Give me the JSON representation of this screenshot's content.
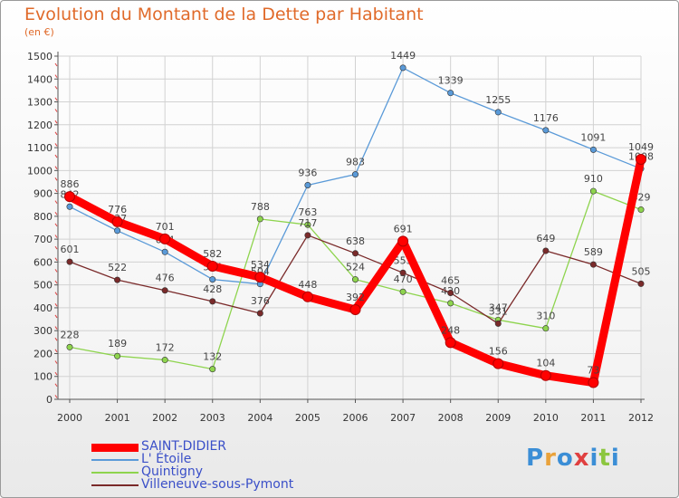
{
  "header": {
    "title": "Evolution du Montant de la Dette par Habitant",
    "unit": "(en €)"
  },
  "logo": {
    "text": "Proxiti",
    "colors": [
      "#3b8ed6",
      "#e9a23b",
      "#3b8ed6",
      "#e04040",
      "#3b8ed6",
      "#8cc63f",
      "#3b8ed6"
    ]
  },
  "chart_data": {
    "type": "line",
    "title": "Evolution du Montant de la Dette par Habitant",
    "ylabel": "(en €)",
    "x": [
      "2000",
      "2001",
      "2002",
      "2003",
      "2004",
      "2005",
      "2006",
      "2007",
      "2008",
      "2009",
      "2010",
      "2011",
      "2012"
    ],
    "ylim": [
      0,
      1500
    ],
    "yticks": [
      0,
      100,
      200,
      300,
      400,
      500,
      600,
      700,
      800,
      900,
      1000,
      1100,
      1200,
      1300,
      1400,
      1500
    ],
    "grid": true,
    "legend_position": "bottom-left",
    "series": [
      {
        "name": "SAINT-DIDIER",
        "color": "#ff0000",
        "emphasis": true,
        "values": [
          886,
          776,
          701,
          582,
          534,
          448,
          392,
          691,
          248,
          156,
          104,
          73,
          1049
        ]
      },
      {
        "name": "L' Étoile",
        "color": "#5a9ad8",
        "values": [
          842,
          737,
          644,
          524,
          504,
          936,
          983,
          1449,
          1339,
          1255,
          1176,
          1091,
          1008
        ]
      },
      {
        "name": "Quintigny",
        "color": "#8ed44e",
        "values": [
          228,
          189,
          172,
          132,
          788,
          763,
          524,
          470,
          420,
          347,
          310,
          910,
          829
        ]
      },
      {
        "name": "Villeneuve-sous-Pymont",
        "color": "#7a2a2a",
        "values": [
          601,
          522,
          476,
          428,
          376,
          717,
          638,
          553,
          465,
          331,
          649,
          589,
          505
        ]
      }
    ]
  }
}
